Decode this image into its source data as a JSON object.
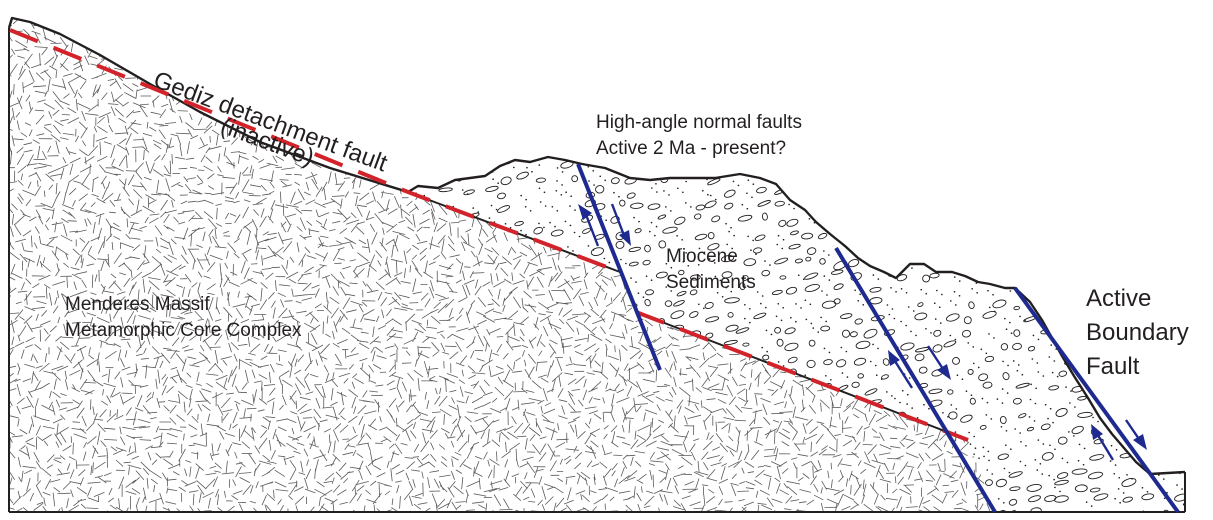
{
  "labels": {
    "detachment_line1": "Gediz detachment fault",
    "detachment_line2": "(inactive)",
    "high_angle_line1": "High-angle normal faults",
    "high_angle_line2": "Active 2 Ma - present?",
    "miocene_line1": "Miocene",
    "miocene_line2": "Sediments",
    "massif_line1": "Menderes Massif",
    "massif_line2": "Metamorphic Core Complex",
    "boundary_line1": "Active",
    "boundary_line2": "Boundary",
    "boundary_line3": "Fault"
  },
  "colors": {
    "outline": "#231f20",
    "detachment": "#d2232a",
    "fault": "#1e2a8f",
    "texture": "#5a5a5a"
  }
}
